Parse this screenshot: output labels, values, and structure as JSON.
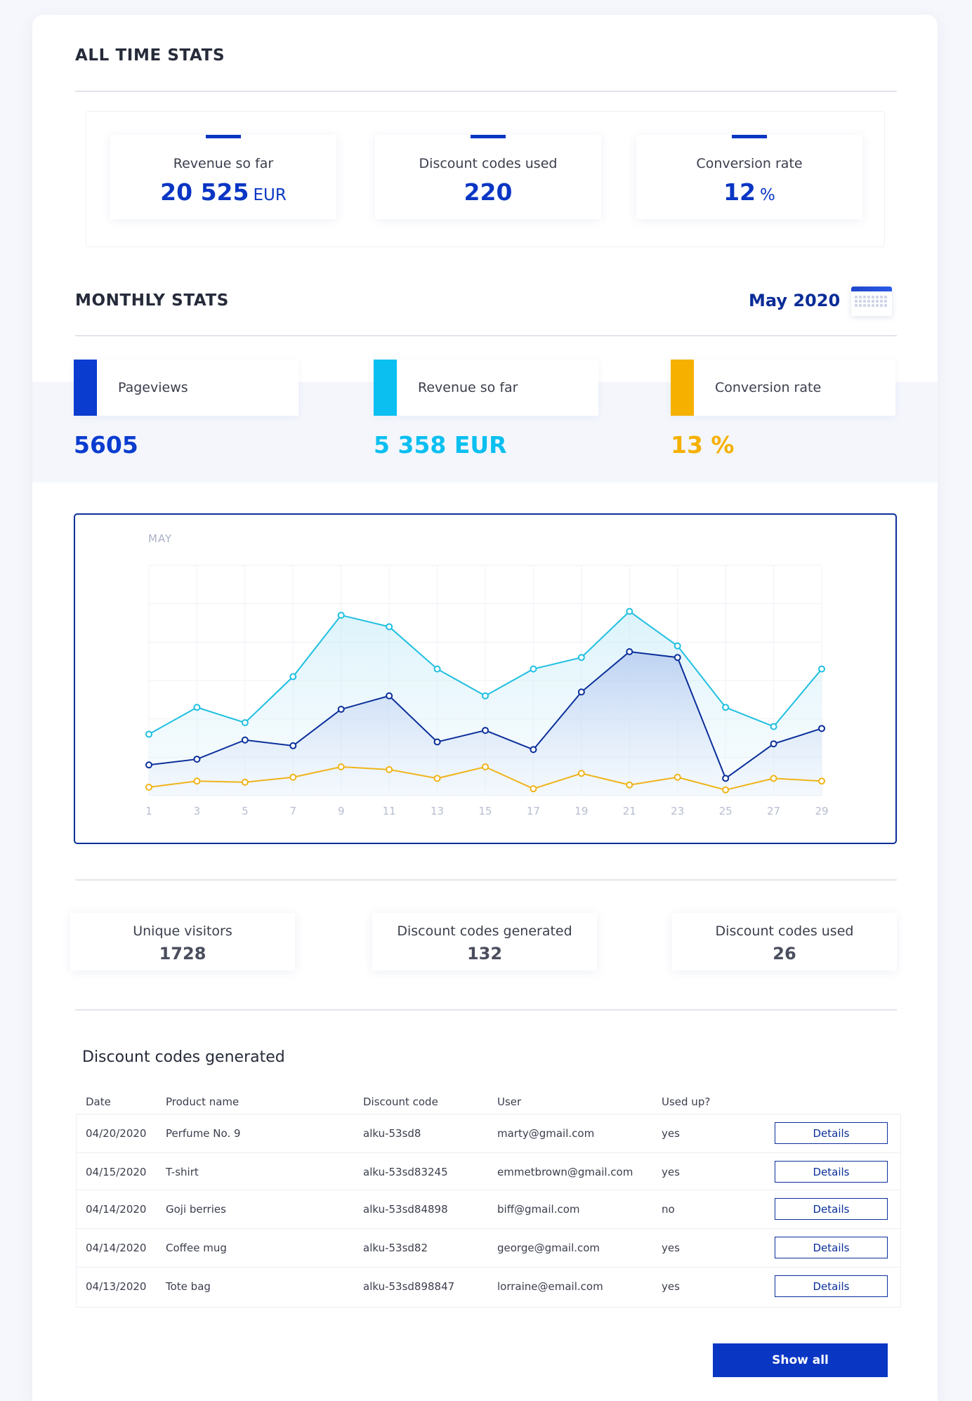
{
  "all_time": {
    "title": "ALL TIME STATS",
    "cards": [
      {
        "label": "Revenue so far",
        "value": "20 525",
        "unit": "EUR"
      },
      {
        "label": "Discount codes used",
        "value": "220",
        "unit": ""
      },
      {
        "label": "Conversion rate",
        "value": "12",
        "unit": "%"
      }
    ]
  },
  "monthly": {
    "title": "MONTHLY STATS",
    "month": "May 2020",
    "cards": [
      {
        "label": "Pageviews",
        "value": "5605",
        "color": "#0a3ccf"
      },
      {
        "label": "Revenue so far",
        "value": "5 358 EUR",
        "color": "#0bbff0"
      },
      {
        "label": "Conversion rate",
        "value": "13 %",
        "color": "#f5b000"
      }
    ]
  },
  "chart_data": {
    "type": "line",
    "title": "MAY",
    "x": [
      1,
      3,
      5,
      7,
      9,
      11,
      13,
      15,
      17,
      19,
      21,
      23,
      25,
      27,
      29
    ],
    "xlabel": "",
    "ylabel": "",
    "grid": true,
    "ylim": [
      0,
      6
    ],
    "series": [
      {
        "color": "#1fbfe0",
        "values": [
          1.6,
          2.3,
          1.9,
          3.1,
          4.7,
          4.4,
          3.3,
          2.6,
          3.3,
          3.6,
          4.8,
          3.9,
          2.3,
          1.8,
          3.3
        ]
      },
      {
        "color": "#0b2f9a",
        "values": [
          0.8,
          0.95,
          1.45,
          1.3,
          2.25,
          2.6,
          1.4,
          1.7,
          1.2,
          2.7,
          3.75,
          3.6,
          0.45,
          1.35,
          1.75
        ]
      },
      {
        "color": "#f0b419",
        "values": [
          0.22,
          0.38,
          0.35,
          0.48,
          0.75,
          0.68,
          0.45,
          0.75,
          0.18,
          0.58,
          0.28,
          0.48,
          0.15,
          0.45,
          0.38
        ]
      }
    ]
  },
  "summary": [
    {
      "label": "Unique visitors",
      "value": "1728"
    },
    {
      "label": "Discount codes generated",
      "value": "132"
    },
    {
      "label": "Discount codes used",
      "value": "26"
    }
  ],
  "table": {
    "title": "Discount codes generated",
    "headers": [
      "Date",
      "Product name",
      "Discount code",
      "User",
      "Used up?"
    ],
    "rows": [
      [
        "04/20/2020",
        "Perfume No. 9",
        "alku-53sd8",
        "marty@gmail.com",
        "yes"
      ],
      [
        "04/15/2020",
        "T-shirt",
        "alku-53sd83245",
        "emmetbrown@gmail.com",
        "yes"
      ],
      [
        "04/14/2020",
        "Goji berries",
        "alku-53sd84898",
        "biff@gmail.com",
        "no"
      ],
      [
        "04/14/2020",
        "Coffee mug",
        "alku-53sd82",
        "george@gmail.com",
        "yes"
      ],
      [
        "04/13/2020",
        "Tote bag",
        "alku-53sd898847",
        "lorraine@email.com",
        "yes"
      ]
    ],
    "details_label": "Details",
    "show_all_label": "Show all"
  },
  "colors": {
    "brand": "#0a36c4",
    "navy": "#0b2f9a"
  },
  "icons": {
    "calendar": "calendar-icon"
  }
}
